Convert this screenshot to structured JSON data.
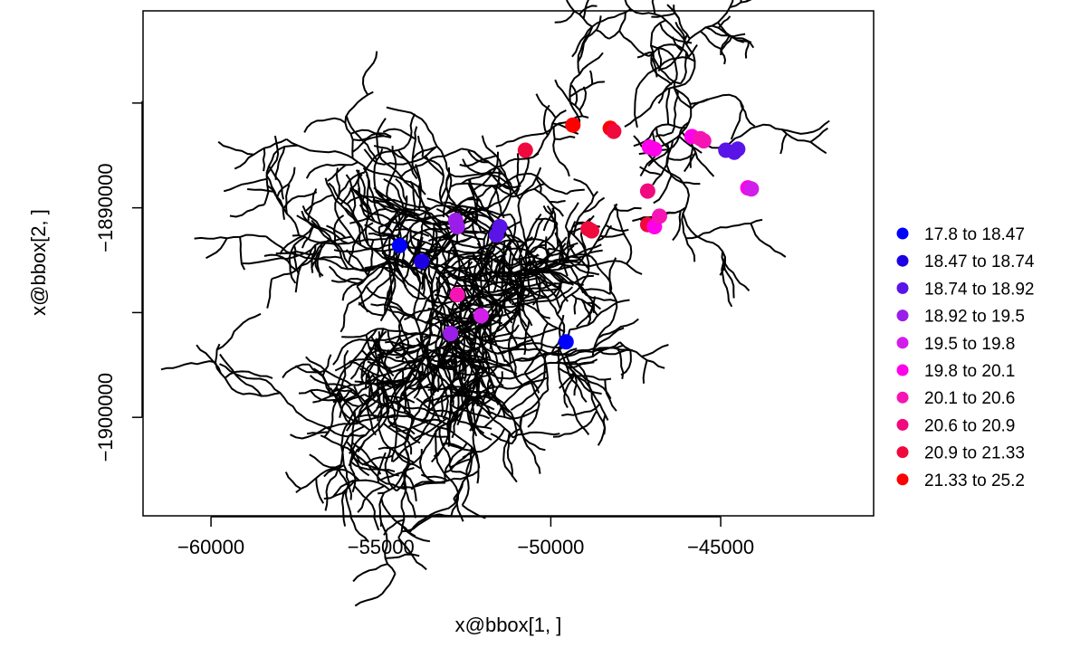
{
  "chart_data": {
    "type": "scatter",
    "xlabel": "x@bbox[1, ]",
    "ylabel": "x@bbox[2, ]",
    "xlim": [
      -62000,
      -40500
    ],
    "ylim": [
      -1904700,
      -1880600
    ],
    "x_ticks": [
      -60000,
      -55000,
      -50000,
      -45000
    ],
    "x_tick_labels": [
      "−60000",
      "−55000",
      "−50000",
      "−45000"
    ],
    "y_ticks": [
      -1890000,
      -1900000
    ],
    "y_tick_labels": [
      "−1890000",
      "−1900000"
    ],
    "grid": false,
    "legend_position": "right",
    "legend": [
      {
        "label": "17.8 to 18.47",
        "color": "#0000FF"
      },
      {
        "label": "18.47 to 18.74",
        "color": "#1C00E3"
      },
      {
        "label": "18.74 to 18.92",
        "color": "#5A14E8"
      },
      {
        "label": "18.92 to 19.5",
        "color": "#9A1EE8"
      },
      {
        "label": "19.5 to 19.8",
        "color": "#D21EEB"
      },
      {
        "label": "19.8 to 20.1",
        "color": "#FF00EA"
      },
      {
        "label": "20.1 to 20.6",
        "color": "#F515B4"
      },
      {
        "label": "20.6 to 20.9",
        "color": "#F00A7D"
      },
      {
        "label": "20.9 to 21.33",
        "color": "#F0093C"
      },
      {
        "label": "21.33 to 25.2",
        "color": "#FF0000"
      }
    ],
    "points": [
      {
        "x": -54450,
        "y": -1891800,
        "cls": 0
      },
      {
        "x": -53800,
        "y": -1892550,
        "cls": 1
      },
      {
        "x": -52800,
        "y": -1890600,
        "cls": 3
      },
      {
        "x": -52750,
        "y": -1890900,
        "cls": 3
      },
      {
        "x": -51500,
        "y": -1890900,
        "cls": 2
      },
      {
        "x": -51600,
        "y": -1891300,
        "cls": 2
      },
      {
        "x": -52750,
        "y": -1894150,
        "cls": 6
      },
      {
        "x": -52050,
        "y": -1895150,
        "cls": 4
      },
      {
        "x": -52950,
        "y": -1896000,
        "cls": 3
      },
      {
        "x": -49550,
        "y": -1896400,
        "cls": 0
      },
      {
        "x": -50750,
        "y": -1887250,
        "cls": 8
      },
      {
        "x": -49350,
        "y": -1886050,
        "cls": 9
      },
      {
        "x": -48250,
        "y": -1886200,
        "cls": 9
      },
      {
        "x": -48150,
        "y": -1886350,
        "cls": 8
      },
      {
        "x": -48900,
        "y": -1891000,
        "cls": 8
      },
      {
        "x": -48800,
        "y": -1891100,
        "cls": 8
      },
      {
        "x": -47100,
        "y": -1887100,
        "cls": 5
      },
      {
        "x": -46950,
        "y": -1887200,
        "cls": 5
      },
      {
        "x": -47150,
        "y": -1889200,
        "cls": 7
      },
      {
        "x": -47150,
        "y": -1890800,
        "cls": 8
      },
      {
        "x": -46950,
        "y": -1890900,
        "cls": 5
      },
      {
        "x": -46800,
        "y": -1890400,
        "cls": 6
      },
      {
        "x": -45850,
        "y": -1886600,
        "cls": 5
      },
      {
        "x": -45600,
        "y": -1886700,
        "cls": 6
      },
      {
        "x": -45500,
        "y": -1886800,
        "cls": 6
      },
      {
        "x": -44850,
        "y": -1887250,
        "cls": 2
      },
      {
        "x": -44600,
        "y": -1887350,
        "cls": 2
      },
      {
        "x": -44500,
        "y": -1887200,
        "cls": 2
      },
      {
        "x": -44200,
        "y": -1889050,
        "cls": 5
      },
      {
        "x": -44100,
        "y": -1889100,
        "cls": 4
      }
    ]
  }
}
